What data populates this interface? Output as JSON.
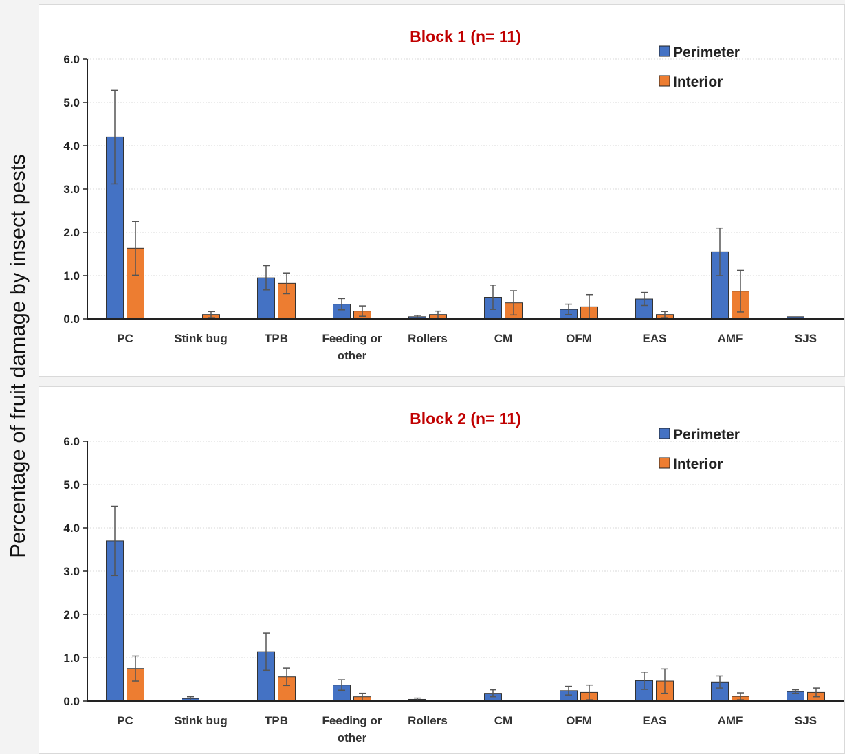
{
  "ylabel": "Percentage of fruit damage by insect pests",
  "colors": {
    "perimeter": "#4472c4",
    "interior": "#ed7d31",
    "error": "#555555",
    "grid": "#d9d9d9"
  },
  "chart_data": [
    {
      "type": "bar",
      "title": "Block 1 (n= 11)",
      "ylim": [
        0,
        6
      ],
      "yticks": [
        "0.0",
        "1.0",
        "2.0",
        "3.0",
        "4.0",
        "5.0",
        "6.0"
      ],
      "categories": [
        [
          "PC"
        ],
        [
          "Stink bug"
        ],
        [
          "TPB"
        ],
        [
          "Feeding or",
          "other"
        ],
        [
          "Rollers"
        ],
        [
          "CM"
        ],
        [
          "OFM"
        ],
        [
          "EAS"
        ],
        [
          "AMF"
        ],
        [
          "SJS"
        ]
      ],
      "legend_position": "top-right",
      "series": [
        {
          "name": "Perimeter",
          "color": "#4472c4",
          "values": [
            4.2,
            0.0,
            0.95,
            0.34,
            0.05,
            0.5,
            0.22,
            0.46,
            1.55,
            0.05
          ],
          "errors": [
            1.08,
            0.0,
            0.28,
            0.13,
            0.03,
            0.28,
            0.12,
            0.15,
            0.55,
            0.0
          ]
        },
        {
          "name": "Interior",
          "color": "#ed7d31",
          "values": [
            1.63,
            0.1,
            0.82,
            0.18,
            0.1,
            0.37,
            0.28,
            0.1,
            0.64,
            0.0
          ],
          "errors": [
            0.62,
            0.07,
            0.24,
            0.12,
            0.08,
            0.28,
            0.28,
            0.07,
            0.48,
            0.0
          ]
        }
      ]
    },
    {
      "type": "bar",
      "title": "Block 2 (n= 11)",
      "ylim": [
        0,
        6
      ],
      "yticks": [
        "0.0",
        "1.0",
        "2.0",
        "3.0",
        "4.0",
        "5.0",
        "6.0"
      ],
      "categories": [
        [
          "PC"
        ],
        [
          "Stink bug"
        ],
        [
          "TPB"
        ],
        [
          "Feeding or",
          "other"
        ],
        [
          "Rollers"
        ],
        [
          "CM"
        ],
        [
          "OFM"
        ],
        [
          "EAS"
        ],
        [
          "AMF"
        ],
        [
          "SJS"
        ]
      ],
      "legend_position": "top-right",
      "series": [
        {
          "name": "Perimeter",
          "color": "#4472c4",
          "values": [
            3.7,
            0.06,
            1.14,
            0.37,
            0.04,
            0.18,
            0.24,
            0.47,
            0.44,
            0.22
          ],
          "errors": [
            0.8,
            0.04,
            0.43,
            0.12,
            0.03,
            0.08,
            0.1,
            0.2,
            0.14,
            0.04
          ]
        },
        {
          "name": "Interior",
          "color": "#ed7d31",
          "values": [
            0.75,
            0.0,
            0.56,
            0.1,
            0.0,
            0.0,
            0.2,
            0.46,
            0.11,
            0.2
          ],
          "errors": [
            0.29,
            0.0,
            0.2,
            0.08,
            0.0,
            0.0,
            0.17,
            0.28,
            0.08,
            0.1
          ]
        }
      ]
    }
  ]
}
